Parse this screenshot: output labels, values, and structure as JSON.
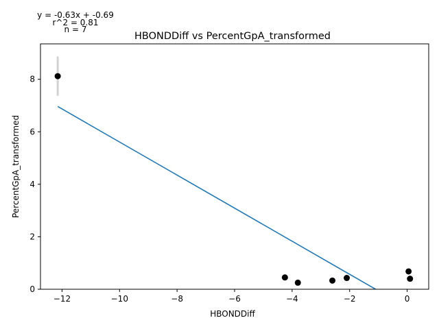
{
  "chart_data": {
    "type": "scatter",
    "title": "HBONDDiff vs PercentGpA_transformed",
    "xlabel": "HBONDDiff",
    "ylabel": "PercentGpA_transformed",
    "xlim": [
      -12.75,
      0.75
    ],
    "ylim": [
      0,
      9.35
    ],
    "xticks": [
      -12,
      -10,
      -8,
      -6,
      -4,
      -2,
      0
    ],
    "yticks": [
      0,
      2,
      4,
      6,
      8
    ],
    "grid": false,
    "annotations": {
      "equation": "y = -0.63x + -0.69",
      "r2": "r^2 = 0.81",
      "n": "n = 7"
    },
    "points": [
      {
        "x": -12.15,
        "y": 8.12,
        "err": 0.75
      },
      {
        "x": -4.25,
        "y": 0.45
      },
      {
        "x": -3.8,
        "y": 0.25
      },
      {
        "x": -2.6,
        "y": 0.33
      },
      {
        "x": -2.1,
        "y": 0.43
      },
      {
        "x": 0.05,
        "y": 0.68
      },
      {
        "x": 0.1,
        "y": 0.4
      }
    ],
    "fit": {
      "slope": -0.63,
      "intercept": -0.69,
      "x_range": [
        -12.15,
        0.1
      ]
    },
    "colors": {
      "points": "#000000",
      "fit_line": "#1f77b4",
      "error_bar": "#d3d3d3"
    }
  }
}
